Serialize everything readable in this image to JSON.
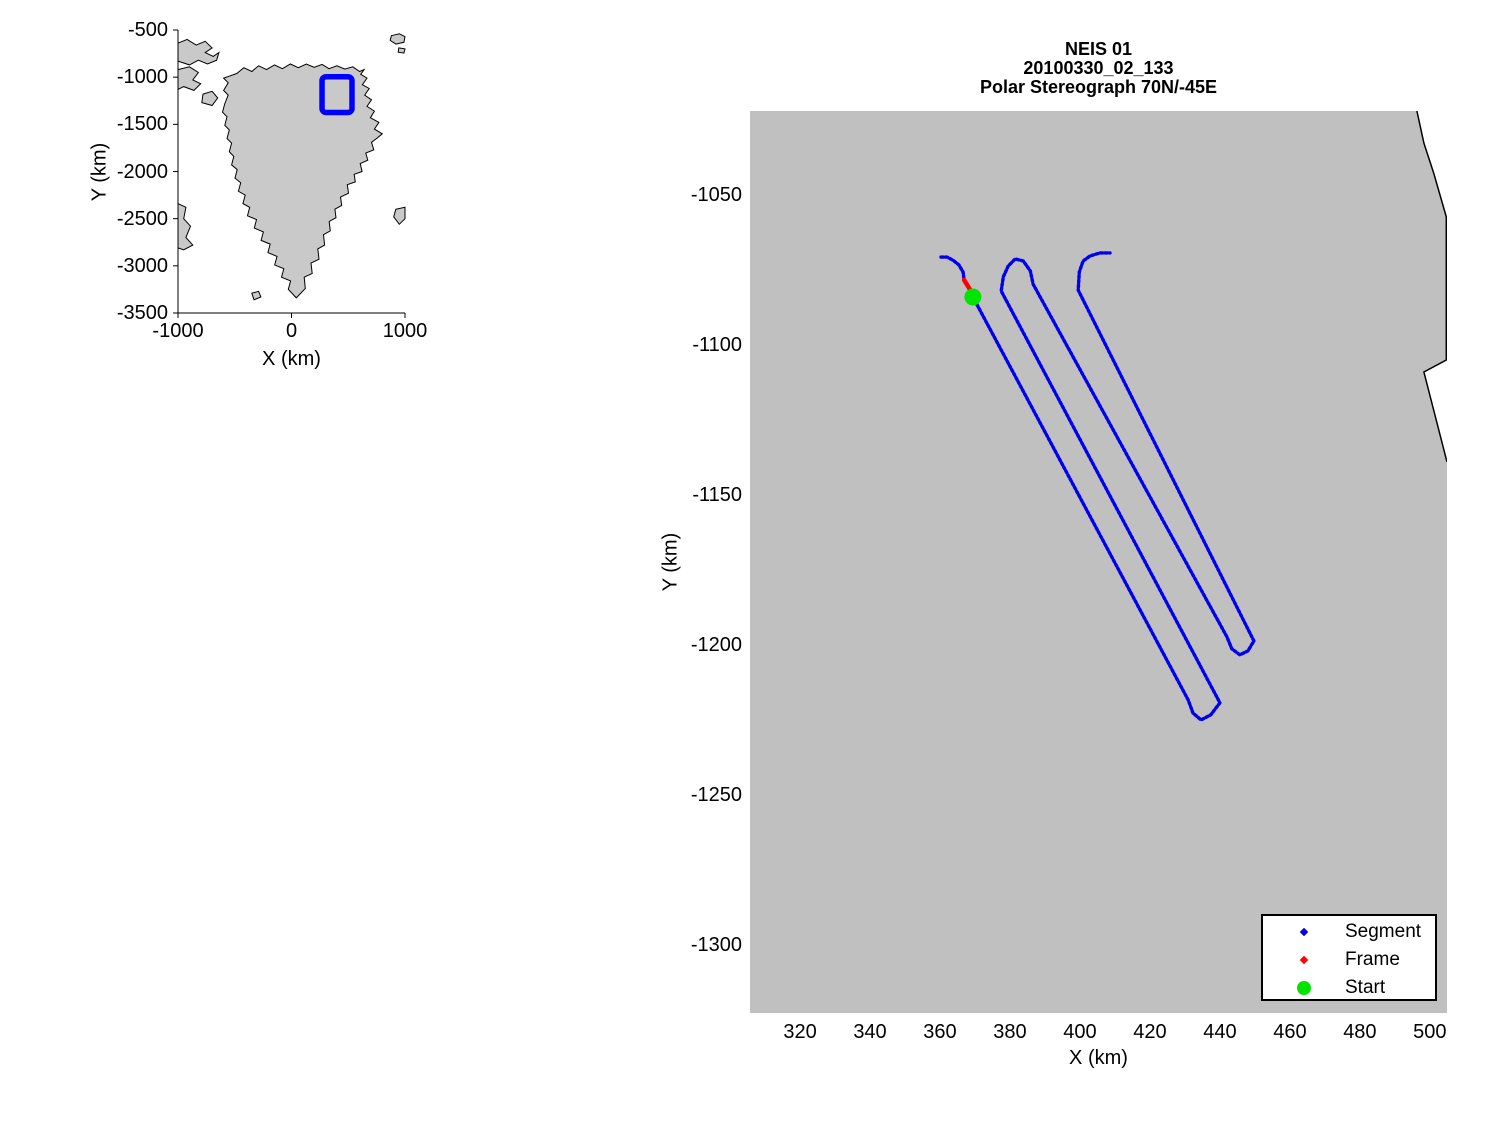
{
  "figure": {
    "background": "#ffffff",
    "plot_bg_gray": "#c0c0c0",
    "land_gray": "#c9c9c9",
    "coast_color": "#000000"
  },
  "chart_data": [
    {
      "id": "inset-overview",
      "type": "map",
      "xlabel": "X (km)",
      "ylabel": "Y (km)",
      "xlim": [
        -1000,
        1000
      ],
      "ylim": [
        -3500,
        -500
      ],
      "x_ticks": [
        -1000,
        0,
        1000
      ],
      "y_ticks": [
        -500,
        -1000,
        -1500,
        -2000,
        -2500,
        -3000,
        -3500
      ],
      "region_box": {
        "x0": 269,
        "x1": 533,
        "y0": -995,
        "y1": -1374,
        "color": "#0000ff",
        "line_width": 5.5
      },
      "greenland_polygon": [
        [
          -480,
          -960
        ],
        [
          -420,
          -900
        ],
        [
          -350,
          -940
        ],
        [
          -290,
          -880
        ],
        [
          -220,
          -920
        ],
        [
          -150,
          -870
        ],
        [
          -80,
          -910
        ],
        [
          -10,
          -860
        ],
        [
          60,
          -900
        ],
        [
          130,
          -860
        ],
        [
          200,
          -895
        ],
        [
          270,
          -865
        ],
        [
          330,
          -910
        ],
        [
          400,
          -880
        ],
        [
          470,
          -915
        ],
        [
          540,
          -890
        ],
        [
          600,
          -940
        ],
        [
          640,
          -920
        ],
        [
          610,
          -970
        ],
        [
          665,
          -1010
        ],
        [
          625,
          -1080
        ],
        [
          685,
          -1120
        ],
        [
          645,
          -1190
        ],
        [
          705,
          -1240
        ],
        [
          665,
          -1310
        ],
        [
          730,
          -1360
        ],
        [
          695,
          -1430
        ],
        [
          770,
          -1480
        ],
        [
          730,
          -1550
        ],
        [
          800,
          -1600
        ],
        [
          750,
          -1650
        ],
        [
          705,
          -1690
        ],
        [
          725,
          -1770
        ],
        [
          655,
          -1805
        ],
        [
          672,
          -1880
        ],
        [
          605,
          -1915
        ],
        [
          622,
          -2000
        ],
        [
          552,
          -2030
        ],
        [
          562,
          -2110
        ],
        [
          492,
          -2140
        ],
        [
          502,
          -2230
        ],
        [
          432,
          -2270
        ],
        [
          442,
          -2360
        ],
        [
          382,
          -2400
        ],
        [
          392,
          -2490
        ],
        [
          332,
          -2530
        ],
        [
          342,
          -2630
        ],
        [
          282,
          -2670
        ],
        [
          292,
          -2780
        ],
        [
          232,
          -2820
        ],
        [
          242,
          -2930
        ],
        [
          172,
          -2970
        ],
        [
          182,
          -3080
        ],
        [
          112,
          -3120
        ],
        [
          122,
          -3240
        ],
        [
          42,
          -3340
        ],
        [
          -28,
          -3250
        ],
        [
          -8,
          -3160
        ],
        [
          -88,
          -3120
        ],
        [
          -68,
          -3030
        ],
        [
          -148,
          -2990
        ],
        [
          -128,
          -2900
        ],
        [
          -208,
          -2860
        ],
        [
          -188,
          -2770
        ],
        [
          -268,
          -2730
        ],
        [
          -248,
          -2640
        ],
        [
          -328,
          -2600
        ],
        [
          -308,
          -2510
        ],
        [
          -388,
          -2470
        ],
        [
          -368,
          -2380
        ],
        [
          -428,
          -2340
        ],
        [
          -408,
          -2250
        ],
        [
          -468,
          -2210
        ],
        [
          -448,
          -2120
        ],
        [
          -498,
          -2070
        ],
        [
          -478,
          -1980
        ],
        [
          -528,
          -1930
        ],
        [
          -508,
          -1840
        ],
        [
          -548,
          -1790
        ],
        [
          -528,
          -1700
        ],
        [
          -568,
          -1650
        ],
        [
          -548,
          -1560
        ],
        [
          -588,
          -1510
        ],
        [
          -568,
          -1420
        ],
        [
          -608,
          -1370
        ],
        [
          -588,
          -1280
        ],
        [
          -558,
          -1190
        ],
        [
          -598,
          -1140
        ],
        [
          -558,
          -1060
        ],
        [
          -598,
          -1010
        ],
        [
          -548,
          -990
        ],
        [
          -480,
          -960
        ]
      ],
      "island_polygons": [
        [
          [
            -1000,
            -640
          ],
          [
            -920,
            -600
          ],
          [
            -840,
            -660
          ],
          [
            -760,
            -620
          ],
          [
            -700,
            -690
          ],
          [
            -760,
            -740
          ],
          [
            -690,
            -780
          ],
          [
            -640,
            -740
          ],
          [
            -660,
            -820
          ],
          [
            -740,
            -860
          ],
          [
            -820,
            -820
          ],
          [
            -900,
            -870
          ],
          [
            -1000,
            -830
          ]
        ],
        [
          [
            -1000,
            -920
          ],
          [
            -900,
            -890
          ],
          [
            -820,
            -950
          ],
          [
            -870,
            -1030
          ],
          [
            -800,
            -1070
          ],
          [
            -860,
            -1140
          ],
          [
            -950,
            -1100
          ],
          [
            -1000,
            -1130
          ]
        ],
        [
          [
            -780,
            -1180
          ],
          [
            -700,
            -1150
          ],
          [
            -650,
            -1220
          ],
          [
            -700,
            -1300
          ],
          [
            -790,
            -1270
          ]
        ],
        [
          [
            -1000,
            -2340
          ],
          [
            -930,
            -2380
          ],
          [
            -950,
            -2500
          ],
          [
            -890,
            -2580
          ],
          [
            -930,
            -2700
          ],
          [
            -870,
            -2780
          ],
          [
            -950,
            -2830
          ],
          [
            -1000,
            -2810
          ]
        ],
        [
          [
            880,
            -560
          ],
          [
            950,
            -540
          ],
          [
            1000,
            -570
          ],
          [
            990,
            -630
          ],
          [
            920,
            -650
          ],
          [
            870,
            -610
          ]
        ],
        [
          [
            945,
            -690
          ],
          [
            1000,
            -700
          ],
          [
            990,
            -745
          ],
          [
            940,
            -735
          ]
        ],
        [
          [
            920,
            -2400
          ],
          [
            1000,
            -2380
          ],
          [
            1000,
            -2500
          ],
          [
            950,
            -2560
          ],
          [
            900,
            -2480
          ]
        ],
        [
          [
            -350,
            -3290
          ],
          [
            -290,
            -3270
          ],
          [
            -270,
            -3330
          ],
          [
            -330,
            -3360
          ]
        ]
      ]
    },
    {
      "id": "flight-track",
      "type": "scatter",
      "title_lines": [
        "NEIS 01",
        "20100330_02_133",
        "Polar Stereograph 70N/-45E"
      ],
      "xlabel": "X (km)",
      "ylabel": "Y (km)",
      "xlim": [
        305.7,
        504.9
      ],
      "ylim": [
        -1322.7,
        -1022.0
      ],
      "x_ticks": [
        320,
        340,
        360,
        380,
        400,
        420,
        440,
        460,
        480,
        500
      ],
      "y_ticks": [
        -1050,
        -1100,
        -1150,
        -1200,
        -1250,
        -1300
      ],
      "grid": false,
      "legend_position": "bottom-right",
      "series": [
        {
          "name": "Segment",
          "color": "#0000ee",
          "marker": "small-dot",
          "points": [
            [
              360.3,
              -1070.7
            ],
            [
              362.0,
              -1070.7
            ],
            [
              363.7,
              -1071.7
            ],
            [
              365.4,
              -1073.3
            ],
            [
              366.6,
              -1075.7
            ],
            [
              366.9,
              -1078.3
            ],
            [
              369.0,
              -1082.3
            ],
            [
              369.4,
              -1084.0
            ],
            [
              430.9,
              -1218.3
            ],
            [
              432.3,
              -1222.7
            ],
            [
              434.6,
              -1225.0
            ],
            [
              437.4,
              -1223.3
            ],
            [
              440.0,
              -1219.3
            ],
            [
              377.5,
              -1082.0
            ],
            [
              378.1,
              -1077.3
            ],
            [
              379.5,
              -1073.7
            ],
            [
              381.5,
              -1071.3
            ],
            [
              383.8,
              -1072.0
            ],
            [
              385.8,
              -1075.3
            ],
            [
              386.6,
              -1079.7
            ],
            [
              442.0,
              -1197.3
            ],
            [
              443.4,
              -1201.3
            ],
            [
              445.7,
              -1203.3
            ],
            [
              448.0,
              -1202.0
            ],
            [
              449.7,
              -1198.7
            ],
            [
              399.5,
              -1081.7
            ],
            [
              399.8,
              -1075.7
            ],
            [
              400.9,
              -1072.0
            ],
            [
              402.9,
              -1070.3
            ],
            [
              405.8,
              -1069.3
            ],
            [
              408.6,
              -1069.3
            ]
          ]
        },
        {
          "name": "Frame",
          "color": "#ff0000",
          "marker": "small-dot",
          "points": [
            [
              366.9,
              -1078.3
            ],
            [
              369.0,
              -1082.3
            ]
          ]
        },
        {
          "name": "Start",
          "color": "#00e400",
          "marker": "large-dot",
          "points": [
            [
              369.4,
              -1084.0
            ]
          ]
        }
      ],
      "coastline": [
        [
          496.3,
          -1022.0
        ],
        [
          498.3,
          -1032.7
        ],
        [
          501.1,
          -1042.7
        ],
        [
          504.7,
          -1057.3
        ],
        [
          504.7,
          -1105.0
        ],
        [
          498.3,
          -1109.0
        ],
        [
          504.9,
          -1139.0
        ]
      ],
      "ocean_polygons": [
        [
          [
            496.3,
            -1022.0
          ],
          [
            498.3,
            -1032.7
          ],
          [
            501.1,
            -1042.7
          ],
          [
            504.9,
            -1057.3
          ],
          [
            504.9,
            -1022.0
          ]
        ],
        [
          [
            504.9,
            -1105.0
          ],
          [
            498.3,
            -1109.0
          ],
          [
            504.9,
            -1139.0
          ]
        ]
      ]
    }
  ],
  "legend": {
    "items": [
      {
        "label": "Segment",
        "color": "#0000ee",
        "marker": "diamond"
      },
      {
        "label": "Frame",
        "color": "#ff0000",
        "marker": "diamond"
      },
      {
        "label": "Start",
        "color": "#00e400",
        "marker": "dot"
      }
    ]
  }
}
